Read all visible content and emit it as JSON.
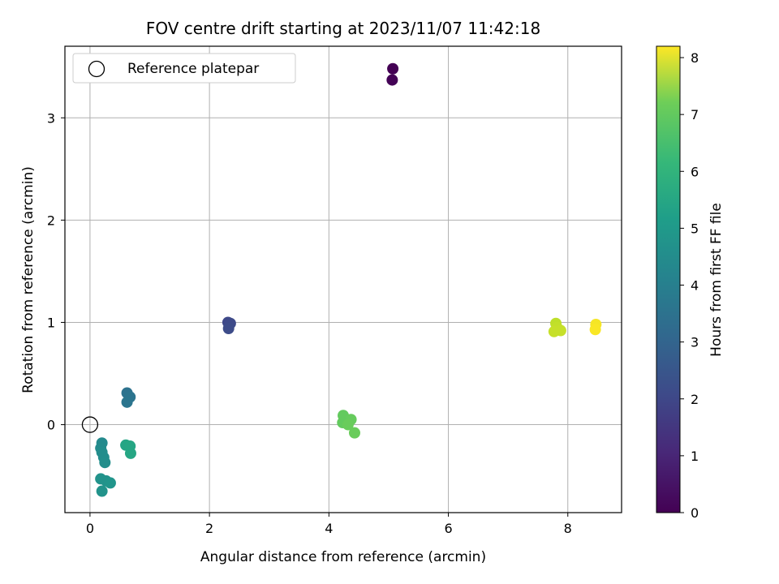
{
  "chart_data": {
    "type": "scatter",
    "title": "FOV centre drift starting at 2023/11/07 11:42:18",
    "xlabel": "Angular distance from reference (arcmin)",
    "ylabel": "Rotation from reference (arcmin)",
    "xlim": [
      -0.42,
      8.9
    ],
    "ylim": [
      -0.86,
      3.7
    ],
    "xticks": [
      0,
      2,
      4,
      6,
      8
    ],
    "yticks": [
      0,
      1,
      2,
      3
    ],
    "grid": true,
    "legend": {
      "position": "upper-left",
      "entries": [
        "Reference platepar"
      ]
    },
    "reference_point": {
      "x": 0,
      "y": 0,
      "label": "Reference platepar"
    },
    "colorbar": {
      "label": "Hours from first FF file",
      "colormap": "viridis",
      "min": 0,
      "max": 8.2,
      "ticks": [
        0,
        1,
        2,
        3,
        4,
        5,
        6,
        7,
        8
      ]
    },
    "points": [
      {
        "x": 5.07,
        "y": 3.48,
        "c": 0.0
      },
      {
        "x": 5.06,
        "y": 3.37,
        "c": 0.05
      },
      {
        "x": 2.31,
        "y": 1.0,
        "c": 1.8
      },
      {
        "x": 2.35,
        "y": 0.99,
        "c": 1.85
      },
      {
        "x": 2.32,
        "y": 0.94,
        "c": 1.9
      },
      {
        "x": 0.62,
        "y": 0.31,
        "c": 3.1
      },
      {
        "x": 0.67,
        "y": 0.27,
        "c": 3.15
      },
      {
        "x": 0.62,
        "y": 0.22,
        "c": 3.2
      },
      {
        "x": 0.2,
        "y": -0.18,
        "c": 3.9
      },
      {
        "x": 0.18,
        "y": -0.23,
        "c": 3.95
      },
      {
        "x": 0.2,
        "y": -0.27,
        "c": 4.0
      },
      {
        "x": 0.23,
        "y": -0.32,
        "c": 4.0
      },
      {
        "x": 0.25,
        "y": -0.37,
        "c": 4.05
      },
      {
        "x": 0.18,
        "y": -0.53,
        "c": 4.2
      },
      {
        "x": 0.27,
        "y": -0.55,
        "c": 4.2
      },
      {
        "x": 0.34,
        "y": -0.57,
        "c": 4.25
      },
      {
        "x": 0.2,
        "y": -0.65,
        "c": 4.2
      },
      {
        "x": 0.6,
        "y": -0.2,
        "c": 4.8
      },
      {
        "x": 0.67,
        "y": -0.21,
        "c": 4.85
      },
      {
        "x": 0.68,
        "y": -0.28,
        "c": 4.85
      },
      {
        "x": 4.24,
        "y": 0.09,
        "c": 6.2
      },
      {
        "x": 4.37,
        "y": 0.05,
        "c": 6.25
      },
      {
        "x": 4.23,
        "y": 0.02,
        "c": 6.2
      },
      {
        "x": 4.32,
        "y": 0.0,
        "c": 6.3
      },
      {
        "x": 4.43,
        "y": -0.08,
        "c": 6.3
      },
      {
        "x": 7.8,
        "y": 0.99,
        "c": 7.4
      },
      {
        "x": 7.82,
        "y": 0.95,
        "c": 7.45
      },
      {
        "x": 7.88,
        "y": 0.92,
        "c": 7.5
      },
      {
        "x": 7.77,
        "y": 0.91,
        "c": 7.5
      },
      {
        "x": 8.47,
        "y": 0.98,
        "c": 8.1
      },
      {
        "x": 8.46,
        "y": 0.93,
        "c": 8.15
      }
    ]
  }
}
